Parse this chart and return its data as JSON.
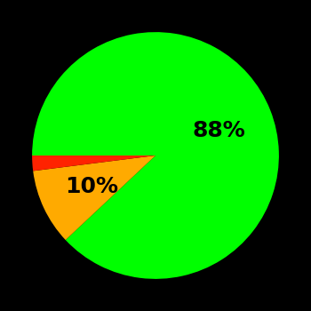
{
  "slices": [
    88,
    10,
    2
  ],
  "colors": [
    "#00ff00",
    "#ffaa00",
    "#ff2200"
  ],
  "labels": [
    "88%",
    "10%",
    ""
  ],
  "background_color": "#000000",
  "label_fontsize": 18,
  "label_fontweight": "bold",
  "startangle": 180,
  "counterclock": false,
  "figsize": [
    3.5,
    3.5
  ],
  "dpi": 100
}
